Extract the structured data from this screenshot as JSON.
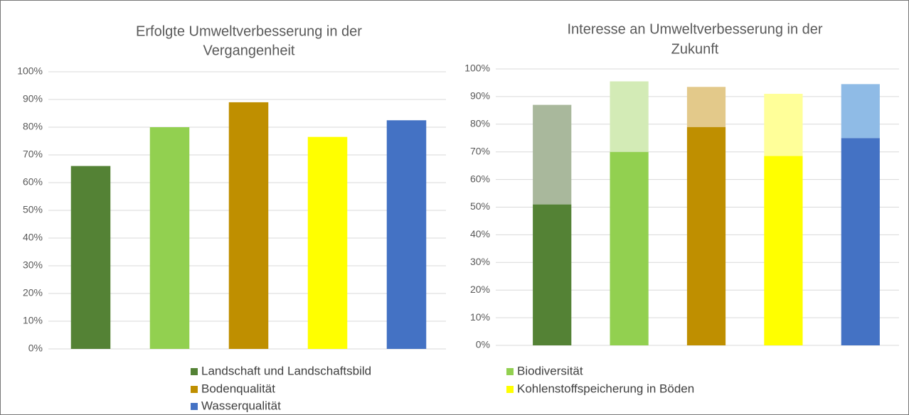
{
  "charts": [
    {
      "chart_data": {
        "type": "bar",
        "title": [
          "Erfolgte Umweltverbesserung in der",
          "Vergangenheit"
        ],
        "categories": [
          null,
          null,
          null,
          null,
          null
        ],
        "values": [
          66,
          80,
          89,
          76.5,
          82.5
        ],
        "colors": [
          "#548235",
          "#92d050",
          "#bf8f00",
          "#ffff00",
          "#4472c4"
        ],
        "ylim": [
          0,
          100
        ],
        "yticks": [
          {
            "value": 0,
            "label": "0%"
          },
          {
            "value": 10,
            "label": "10%"
          },
          {
            "value": 20,
            "label": "20%"
          },
          {
            "value": 30,
            "label": "30%"
          },
          {
            "value": 40,
            "label": "40%"
          },
          {
            "value": 50,
            "label": "50%"
          },
          {
            "value": 60,
            "label": "60%"
          },
          {
            "value": 70,
            "label": "70%"
          },
          {
            "value": 80,
            "label": "80%"
          },
          {
            "value": 90,
            "label": "90%"
          },
          {
            "value": 100,
            "label": "100%"
          }
        ],
        "grid": true
      }
    },
    {
      "chart_data": {
        "type": "stacked_bar",
        "title": [
          "Interesse an Umweltverbesserung in der",
          "Zukunft"
        ],
        "categories": [
          null,
          null,
          null,
          null,
          null
        ],
        "values": [
          51,
          70,
          79,
          68.5,
          75
        ],
        "colors": [
          "#548235",
          "#92d050",
          "#bf8f00",
          "#ffff00",
          "#4472c4"
        ],
        "upper_values": [
          36,
          25.5,
          14.5,
          22.5,
          19.5
        ],
        "upper_colors": [
          "#a9b89c",
          "#d3ebb6",
          "#e3c98a",
          "#ffff99",
          "#8fbbe6"
        ],
        "ylim": [
          0,
          100
        ],
        "yticks": [
          {
            "value": 0,
            "label": "0%"
          },
          {
            "value": 10,
            "label": "10%"
          },
          {
            "value": 20,
            "label": "20%"
          },
          {
            "value": 30,
            "label": "30%"
          },
          {
            "value": 40,
            "label": "40%"
          },
          {
            "value": 50,
            "label": "50%"
          },
          {
            "value": 60,
            "label": "60%"
          },
          {
            "value": 70,
            "label": "70%"
          },
          {
            "value": 80,
            "label": "80%"
          },
          {
            "value": 90,
            "label": "90%"
          },
          {
            "value": 100,
            "label": "100%"
          }
        ],
        "grid": true
      }
    }
  ],
  "legend": [
    {
      "name": "Landschaft und Landschaftsbild",
      "color": "#548235"
    },
    {
      "name": "Biodiversität",
      "color": "#92d050"
    },
    {
      "name": "Bodenqualität",
      "color": "#bf8f00"
    },
    {
      "name": "Kohlenstoffspeicherung in Böden",
      "color": "#ffff00"
    },
    {
      "name": "Wasserqualität",
      "color": "#4472c4"
    }
  ]
}
